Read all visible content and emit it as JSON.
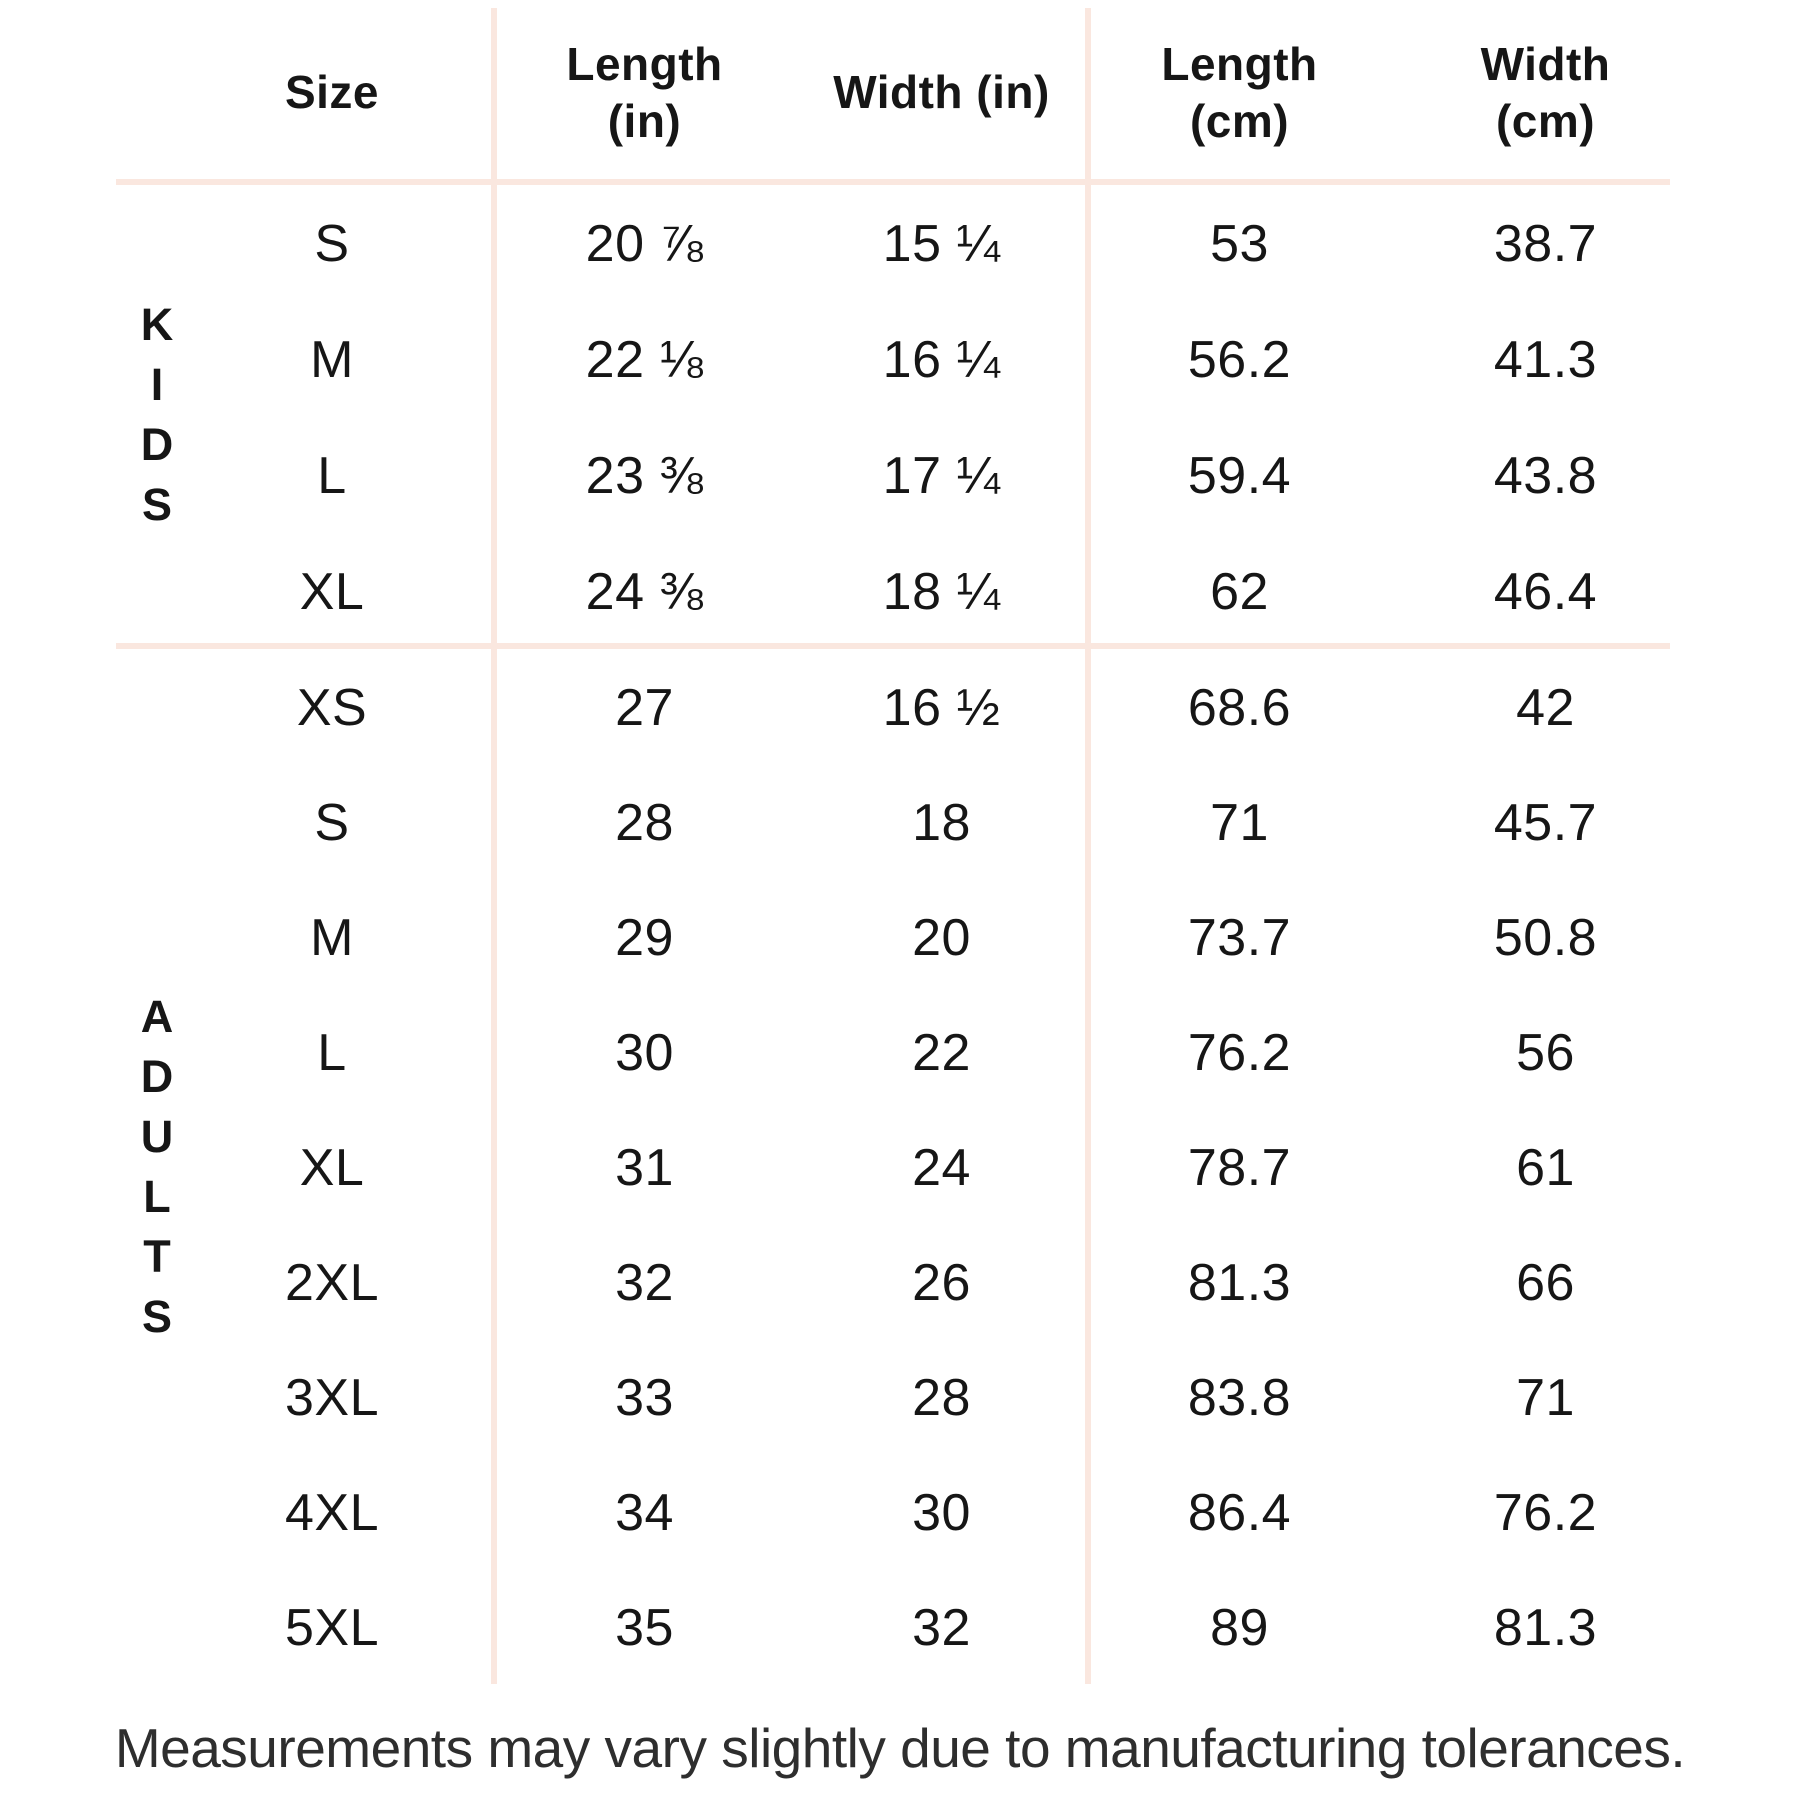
{
  "colors": {
    "background": "#ffffff",
    "divider_line": "#fae7df",
    "table_text": "#161616",
    "footer_text": "#2e2e2e"
  },
  "header": {
    "size": "Size",
    "length_in": "Length\n(in)",
    "width_in": "Width (in)",
    "length_cm": "Length\n(cm)",
    "width_cm": "Width\n(cm)"
  },
  "chart_data": {
    "type": "table",
    "columns": [
      "Size",
      "Length (in)",
      "Width (in)",
      "Length (cm)",
      "Width (cm)"
    ],
    "sections": [
      {
        "group": "KIDS",
        "rows": [
          {
            "size": "S",
            "length_in": "20 ⅞",
            "width_in": "15 ¼",
            "length_cm": "53",
            "width_cm": "38.7"
          },
          {
            "size": "M",
            "length_in": "22 ⅛",
            "width_in": "16 ¼",
            "length_cm": "56.2",
            "width_cm": "41.3"
          },
          {
            "size": "L",
            "length_in": "23 ⅜",
            "width_in": "17 ¼",
            "length_cm": "59.4",
            "width_cm": "43.8"
          },
          {
            "size": "XL",
            "length_in": "24 ⅜",
            "width_in": "18 ¼",
            "length_cm": "62",
            "width_cm": "46.4"
          }
        ]
      },
      {
        "group": "ADULTS",
        "rows": [
          {
            "size": "XS",
            "length_in": "27",
            "width_in": "16 ½",
            "length_cm": "68.6",
            "width_cm": "42"
          },
          {
            "size": "S",
            "length_in": "28",
            "width_in": "18",
            "length_cm": "71",
            "width_cm": "45.7"
          },
          {
            "size": "M",
            "length_in": "29",
            "width_in": "20",
            "length_cm": "73.7",
            "width_cm": "50.8"
          },
          {
            "size": "L",
            "length_in": "30",
            "width_in": "22",
            "length_cm": "76.2",
            "width_cm": "56"
          },
          {
            "size": "XL",
            "length_in": "31",
            "width_in": "24",
            "length_cm": "78.7",
            "width_cm": "61"
          },
          {
            "size": "2XL",
            "length_in": "32",
            "width_in": "26",
            "length_cm": "81.3",
            "width_cm": "66"
          },
          {
            "size": "3XL",
            "length_in": "33",
            "width_in": "28",
            "length_cm": "83.8",
            "width_cm": "71"
          },
          {
            "size": "4XL",
            "length_in": "34",
            "width_in": "30",
            "length_cm": "86.4",
            "width_cm": "76.2"
          },
          {
            "size": "5XL",
            "length_in": "35",
            "width_in": "32",
            "length_cm": "89",
            "width_cm": "81.3"
          }
        ]
      }
    ]
  },
  "footer": {
    "note": "Measurements may vary slightly due to manufacturing tolerances."
  }
}
